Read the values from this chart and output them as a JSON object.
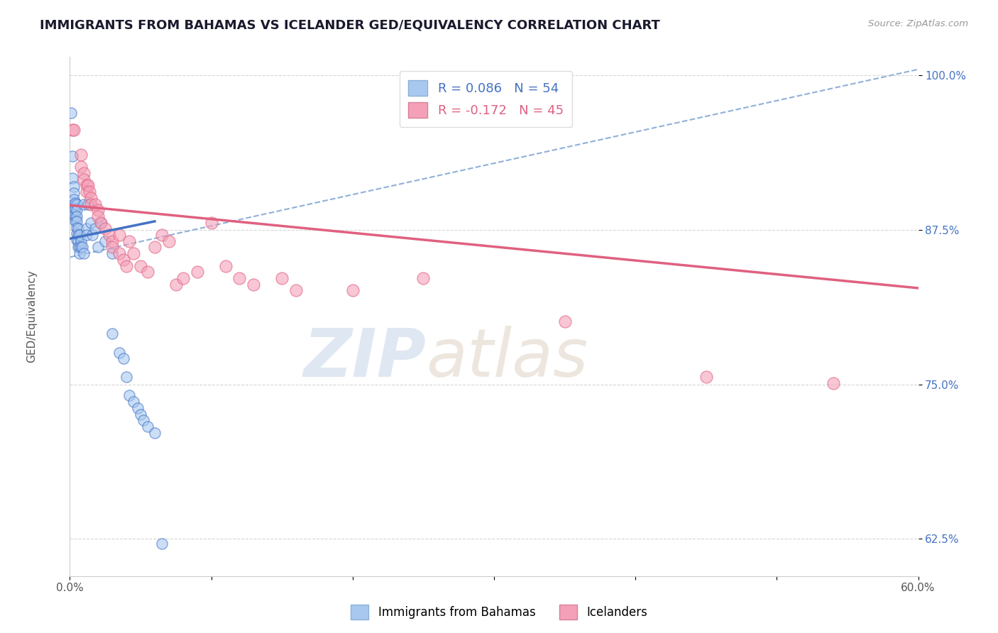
{
  "title": "IMMIGRANTS FROM BAHAMAS VS ICELANDER GED/EQUIVALENCY CORRELATION CHART",
  "source_text": "Source: ZipAtlas.com",
  "ylabel": "GED/Equivalency",
  "xlim": [
    0.0,
    0.6
  ],
  "ylim": [
    0.595,
    1.015
  ],
  "xticks": [
    0.0,
    0.1,
    0.2,
    0.3,
    0.4,
    0.5,
    0.6
  ],
  "xticklabels": [
    "0.0%",
    "",
    "",
    "",
    "",
    "",
    "60.0%"
  ],
  "yticks": [
    0.625,
    0.75,
    0.875,
    1.0
  ],
  "yticklabels": [
    "62.5%",
    "75.0%",
    "87.5%",
    "100.0%"
  ],
  "blue_r": 0.086,
  "blue_n": 54,
  "pink_r": -0.172,
  "pink_n": 45,
  "blue_color": "#a8c8f0",
  "pink_color": "#f4a0b8",
  "blue_line_color": "#4472c4",
  "pink_line_color": "#e06080",
  "dashed_line_color": "#90b0d8",
  "watermark_zip": "ZIP",
  "watermark_atlas": "atlas",
  "legend_blue_label": "Immigrants from Bahamas",
  "legend_pink_label": "Icelanders",
  "blue_line_x": [
    0.0,
    0.06
  ],
  "blue_line_y": [
    0.868,
    0.882
  ],
  "pink_line_x": [
    0.0,
    0.6
  ],
  "pink_line_y": [
    0.895,
    0.828
  ],
  "dashed_line_x": [
    0.0,
    0.6
  ],
  "dashed_line_y": [
    0.853,
    1.005
  ],
  "blue_scatter": [
    [
      0.001,
      0.97
    ],
    [
      0.002,
      0.935
    ],
    [
      0.002,
      0.917
    ],
    [
      0.003,
      0.91
    ],
    [
      0.003,
      0.905
    ],
    [
      0.003,
      0.9
    ],
    [
      0.003,
      0.896
    ],
    [
      0.003,
      0.891
    ],
    [
      0.003,
      0.887
    ],
    [
      0.004,
      0.897
    ],
    [
      0.004,
      0.892
    ],
    [
      0.004,
      0.886
    ],
    [
      0.004,
      0.882
    ],
    [
      0.005,
      0.896
    ],
    [
      0.005,
      0.891
    ],
    [
      0.005,
      0.886
    ],
    [
      0.005,
      0.882
    ],
    [
      0.005,
      0.877
    ],
    [
      0.005,
      0.872
    ],
    [
      0.005,
      0.867
    ],
    [
      0.006,
      0.876
    ],
    [
      0.006,
      0.871
    ],
    [
      0.006,
      0.866
    ],
    [
      0.006,
      0.861
    ],
    [
      0.007,
      0.871
    ],
    [
      0.007,
      0.861
    ],
    [
      0.007,
      0.856
    ],
    [
      0.008,
      0.866
    ],
    [
      0.008,
      0.861
    ],
    [
      0.009,
      0.861
    ],
    [
      0.01,
      0.856
    ],
    [
      0.01,
      0.896
    ],
    [
      0.012,
      0.876
    ],
    [
      0.012,
      0.871
    ],
    [
      0.013,
      0.896
    ],
    [
      0.015,
      0.881
    ],
    [
      0.016,
      0.871
    ],
    [
      0.018,
      0.876
    ],
    [
      0.02,
      0.861
    ],
    [
      0.022,
      0.881
    ],
    [
      0.025,
      0.866
    ],
    [
      0.03,
      0.856
    ],
    [
      0.03,
      0.791
    ],
    [
      0.035,
      0.776
    ],
    [
      0.038,
      0.771
    ],
    [
      0.04,
      0.756
    ],
    [
      0.042,
      0.741
    ],
    [
      0.045,
      0.736
    ],
    [
      0.048,
      0.731
    ],
    [
      0.05,
      0.726
    ],
    [
      0.052,
      0.721
    ],
    [
      0.055,
      0.716
    ],
    [
      0.06,
      0.711
    ],
    [
      0.065,
      0.621
    ]
  ],
  "pink_scatter": [
    [
      0.002,
      0.956
    ],
    [
      0.003,
      0.956
    ],
    [
      0.008,
      0.936
    ],
    [
      0.008,
      0.926
    ],
    [
      0.01,
      0.921
    ],
    [
      0.01,
      0.916
    ],
    [
      0.012,
      0.911
    ],
    [
      0.012,
      0.906
    ],
    [
      0.013,
      0.911
    ],
    [
      0.014,
      0.906
    ],
    [
      0.015,
      0.901
    ],
    [
      0.015,
      0.896
    ],
    [
      0.018,
      0.896
    ],
    [
      0.02,
      0.891
    ],
    [
      0.02,
      0.886
    ],
    [
      0.022,
      0.881
    ],
    [
      0.025,
      0.876
    ],
    [
      0.028,
      0.871
    ],
    [
      0.03,
      0.866
    ],
    [
      0.03,
      0.861
    ],
    [
      0.035,
      0.871
    ],
    [
      0.035,
      0.856
    ],
    [
      0.038,
      0.851
    ],
    [
      0.04,
      0.846
    ],
    [
      0.042,
      0.866
    ],
    [
      0.045,
      0.856
    ],
    [
      0.05,
      0.846
    ],
    [
      0.055,
      0.841
    ],
    [
      0.06,
      0.861
    ],
    [
      0.065,
      0.871
    ],
    [
      0.07,
      0.866
    ],
    [
      0.075,
      0.831
    ],
    [
      0.08,
      0.836
    ],
    [
      0.09,
      0.841
    ],
    [
      0.1,
      0.881
    ],
    [
      0.11,
      0.846
    ],
    [
      0.12,
      0.836
    ],
    [
      0.13,
      0.831
    ],
    [
      0.15,
      0.836
    ],
    [
      0.16,
      0.826
    ],
    [
      0.2,
      0.826
    ],
    [
      0.25,
      0.836
    ],
    [
      0.35,
      0.801
    ],
    [
      0.45,
      0.756
    ],
    [
      0.54,
      0.751
    ]
  ]
}
